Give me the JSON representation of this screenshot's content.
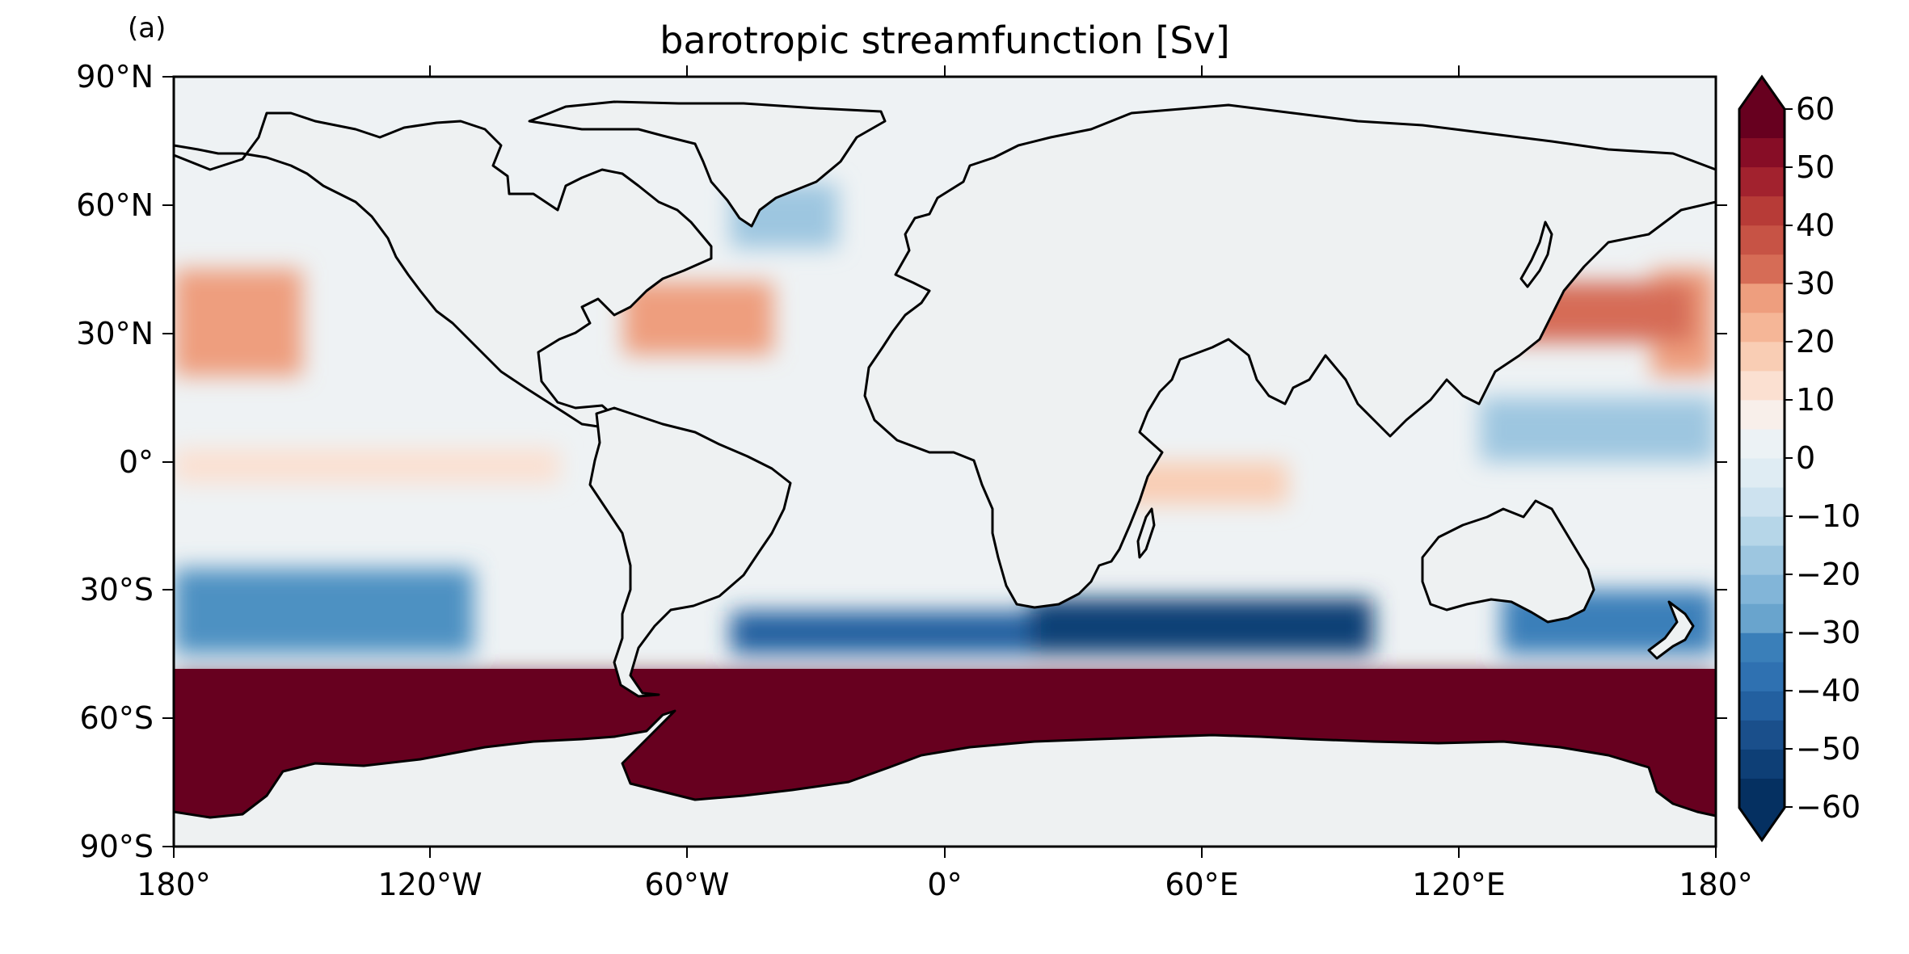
{
  "panel_label": "(a)",
  "title": "barotropic streamfunction [Sv]",
  "x_ticks": [
    "180°",
    "120°W",
    "60°W",
    "0°",
    "60°E",
    "120°E",
    "180°"
  ],
  "y_ticks": [
    "90°N",
    "60°N",
    "30°N",
    "0°",
    "30°S",
    "60°S",
    "90°S"
  ],
  "colorbar": {
    "ticks": [
      "60",
      "50",
      "40",
      "30",
      "20",
      "10",
      "0",
      "−10",
      "−20",
      "−30",
      "−40",
      "−50",
      "−60"
    ],
    "range": [
      -60,
      60
    ],
    "step": 5,
    "extend": "both",
    "colormap": "RdBu_r",
    "palette": [
      "#053061",
      "#0e3f76",
      "#1a4f8b",
      "#2360a0",
      "#2f71b1",
      "#3a7fb9",
      "#4d91c2",
      "#69a4cd",
      "#82b5d8",
      "#9dc6e0",
      "#b6d6e8",
      "#cde2ef",
      "#dfecf3",
      "#ecf2f5",
      "#f8efea",
      "#fbe0d1",
      "#f9cdb4",
      "#f5b697",
      "#ee9e7e",
      "#e38568",
      "#d66c56",
      "#c75345",
      "#b73b37",
      "#a2222e",
      "#870d26",
      "#67001f"
    ]
  },
  "ocean_color": "#eef2f4",
  "land_color": "#eef1f2",
  "coastline_color": "#000000",
  "chart_data": {
    "type": "heatmap",
    "title": "barotropic streamfunction [Sv]",
    "variable": "barotropic streamfunction",
    "units": "Sv",
    "x_range": [
      -180,
      180
    ],
    "y_range": [
      -90,
      90
    ],
    "value_range": [
      -60,
      60
    ],
    "features": [
      {
        "lon": [
          165,
          180
        ],
        "lat": [
          20,
          45
        ],
        "value": 25
      },
      {
        "lon": [
          -180,
          -150
        ],
        "lat": [
          20,
          45
        ],
        "value": 25
      },
      {
        "lon": [
          130,
          175
        ],
        "lat": [
          28,
          42
        ],
        "value": 35
      },
      {
        "lon": [
          -75,
          -40
        ],
        "lat": [
          25,
          42
        ],
        "value": 25
      },
      {
        "lon": [
          -50,
          -25
        ],
        "lat": [
          50,
          65
        ],
        "value": -15
      },
      {
        "lon": [
          20,
          100
        ],
        "lat": [
          -45,
          -32
        ],
        "value": -55
      },
      {
        "lon": [
          -50,
          20
        ],
        "lat": [
          -45,
          -35
        ],
        "value": -45
      },
      {
        "lon": [
          -180,
          -110
        ],
        "lat": [
          -45,
          -25
        ],
        "value": -30
      },
      {
        "lon": [
          130,
          180
        ],
        "lat": [
          -45,
          -30
        ],
        "value": -35
      },
      {
        "lon": [
          -180,
          180
        ],
        "lat": [
          -90,
          -50
        ],
        "value": 60
      },
      {
        "lon": [
          125,
          180
        ],
        "lat": [
          0,
          15
        ],
        "value": -15
      },
      {
        "lon": [
          40,
          80
        ],
        "lat": [
          -10,
          0
        ],
        "value": 15
      },
      {
        "lon": [
          -180,
          -90
        ],
        "lat": [
          -5,
          3
        ],
        "value": 10
      }
    ]
  }
}
